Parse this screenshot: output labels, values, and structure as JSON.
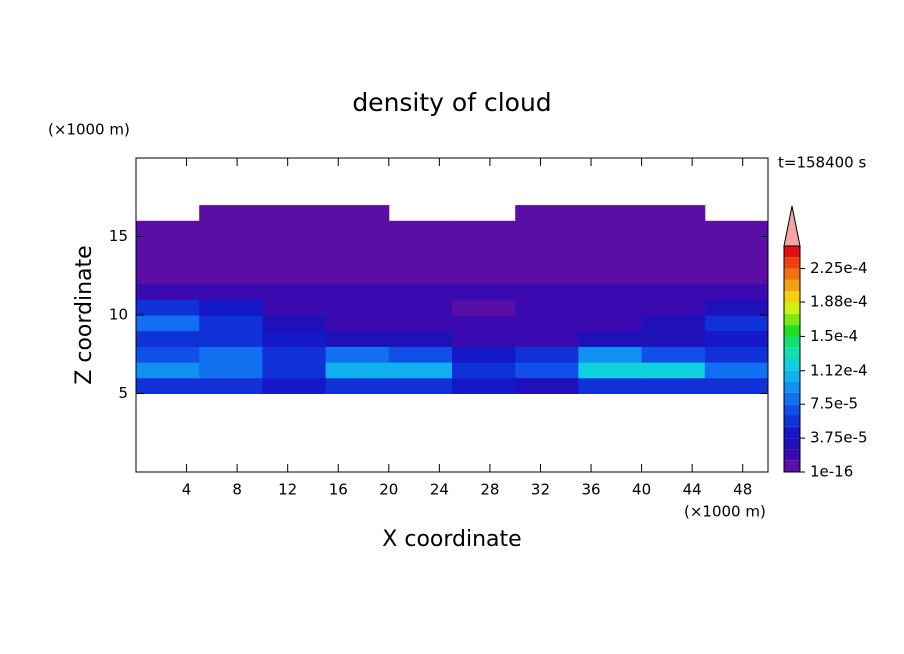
{
  "chart_data": {
    "type": "contour",
    "title": "density of cloud",
    "xlabel": "X coordinate",
    "ylabel": "Z coordinate",
    "xunit": "(×1000 m)",
    "yunit": "(×1000 m)",
    "time_label": "t=158400 s",
    "xlim": [
      0,
      50
    ],
    "ylim": [
      0,
      20
    ],
    "xticks": [
      4,
      8,
      12,
      16,
      20,
      24,
      28,
      32,
      36,
      40,
      44,
      48
    ],
    "yticks": [
      5,
      10,
      15
    ],
    "field": {
      "x": [
        0,
        5,
        10,
        15,
        20,
        25,
        30,
        35,
        40,
        45
      ],
      "z": [
        0,
        1,
        2,
        3,
        4,
        5,
        6,
        7,
        8,
        9,
        10,
        11,
        12,
        13,
        14,
        15,
        16,
        17,
        18,
        19
      ],
      "values": [
        [
          null,
          null,
          null,
          null,
          null,
          null,
          null,
          null,
          null,
          null
        ],
        [
          null,
          null,
          null,
          null,
          null,
          null,
          null,
          null,
          null,
          null
        ],
        [
          null,
          null,
          null,
          null,
          null,
          null,
          null,
          null,
          null,
          null
        ],
        [
          null,
          null,
          null,
          null,
          null,
          null,
          null,
          null,
          null,
          null
        ],
        [
          null,
          null,
          null,
          null,
          null,
          null,
          null,
          null,
          null,
          null
        ],
        [
          6e-05,
          5e-05,
          4e-05,
          6e-05,
          5e-05,
          4e-05,
          3e-05,
          6e-05,
          5e-05,
          6e-05
        ],
        [
          9e-05,
          8e-05,
          6e-05,
          0.00011,
          0.000105,
          5e-05,
          7e-05,
          0.00012,
          0.000115,
          8e-05
        ],
        [
          7e-05,
          8e-05,
          6e-05,
          8e-05,
          7e-05,
          4e-05,
          5e-05,
          9e-05,
          7e-05,
          6e-05
        ],
        [
          5e-05,
          6e-05,
          4e-05,
          3e-05,
          3e-05,
          2e-05,
          2e-05,
          3e-05,
          3e-05,
          4e-05
        ],
        [
          8e-05,
          6e-05,
          3e-05,
          2e-05,
          2e-05,
          1.5e-05,
          1.5e-05,
          2e-05,
          3e-05,
          5e-05
        ],
        [
          5e-05,
          4e-05,
          2e-05,
          1.5e-05,
          1.5e-05,
          1e-05,
          1.5e-05,
          1.5e-05,
          2e-05,
          3e-05
        ],
        [
          1.5e-05,
          1.5e-05,
          1.3e-05,
          1.5e-05,
          1.3e-05,
          1.3e-05,
          1.3e-05,
          1.3e-05,
          1.5e-05,
          1.5e-05
        ],
        [
          8e-06,
          8e-06,
          8e-06,
          8e-06,
          8e-06,
          8e-06,
          8e-06,
          8e-06,
          8e-06,
          8e-06
        ],
        [
          5e-06,
          5e-06,
          5e-06,
          5e-06,
          5e-06,
          5e-06,
          5e-06,
          5e-06,
          5e-06,
          5e-06
        ],
        [
          5e-06,
          5e-06,
          5e-06,
          5e-06,
          5e-06,
          5e-06,
          5e-06,
          5e-06,
          5e-06,
          5e-06
        ],
        [
          2e-06,
          2e-06,
          2e-06,
          2e-06,
          2e-06,
          2e-06,
          2e-06,
          2e-06,
          2e-06,
          2e-06
        ],
        [
          null,
          2e-06,
          2e-06,
          2e-06,
          null,
          null,
          2e-06,
          2e-06,
          2e-06,
          null
        ],
        [
          null,
          null,
          null,
          null,
          null,
          null,
          null,
          null,
          null,
          null
        ],
        [
          null,
          null,
          null,
          null,
          null,
          null,
          null,
          null,
          null,
          null
        ],
        [
          null,
          null,
          null,
          null,
          null,
          null,
          null,
          null,
          null,
          null
        ]
      ]
    },
    "levels": [
      1e-16,
      1.25e-05,
      2.5e-05,
      3.75e-05,
      5e-05,
      6.25e-05,
      7.5e-05,
      8.75e-05,
      0.0001,
      0.0001125,
      0.000125,
      0.0001375,
      0.00015,
      0.0001625,
      0.000175,
      0.0001875,
      0.0002,
      0.0002125,
      0.000225,
      0.0002375
    ],
    "colors": [
      "#5b0ea6",
      "#3a0ab0",
      "#2010b8",
      "#1418c8",
      "#1030d8",
      "#1050e8",
      "#1070f0",
      "#1090f0",
      "#10b0f0",
      "#10d0e0",
      "#10e0b0",
      "#10e070",
      "#20e020",
      "#80e810",
      "#d0f010",
      "#f0d010",
      "#f0a010",
      "#f07010",
      "#f04010",
      "#e01010"
    ],
    "extend_color": "#f4a6a6",
    "clim": [
      1e-16,
      0.00025
    ],
    "cticks": [
      {
        "value": 1e-16,
        "label": "1e-16"
      },
      {
        "value": 3.75e-05,
        "label": "3.75e-5"
      },
      {
        "value": 7.5e-05,
        "label": "7.5e-5"
      },
      {
        "value": 0.000112,
        "label": "1.12e-4"
      },
      {
        "value": 0.00015,
        "label": "1.5e-4"
      },
      {
        "value": 0.000188,
        "label": "1.88e-4"
      },
      {
        "value": 0.000225,
        "label": "2.25e-4"
      }
    ]
  }
}
